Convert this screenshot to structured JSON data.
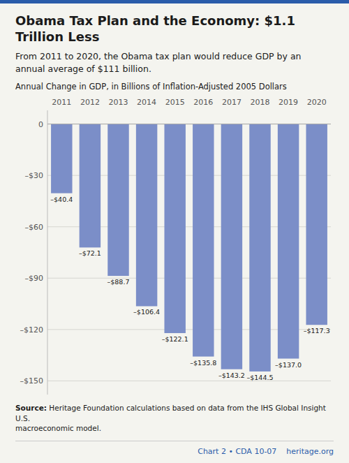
{
  "chart_data": {
    "type": "bar",
    "title": "Obama Tax Plan and the Economy: $1.1 Trillion Less",
    "subtitle": "From 2011 to 2020, the Obama tax plan would reduce GDP by an\nannual average of $111 billion.",
    "y_label": "Annual Change in GDP, in Billions of Inflation-Adjusted 2005 Dollars",
    "source_label": "Source:",
    "source": "Heritage Foundation calculations based on data from the IHS Global Insight U.S.\nmacroeconomic model.",
    "footer": "Chart 2 • CDA 10-07    heritage.org",
    "categories": [
      "2011",
      "2012",
      "2013",
      "2014",
      "2015",
      "2016",
      "2017",
      "2018",
      "2019",
      "2020"
    ],
    "values": [
      -40.4,
      -72.1,
      -88.7,
      -106.4,
      -122.1,
      -135.8,
      -143.2,
      -144.5,
      -137.0,
      -117.3
    ],
    "value_labels": [
      "–$40.4",
      "–$72.1",
      "–$88.7",
      "–$106.4",
      "–$122.1",
      "–$135.8",
      "–$143.2",
      "–$144.5",
      "–$137.0",
      "–$117.3"
    ],
    "color": "#7b8ec8",
    "ylim": [
      -158,
      8
    ],
    "yticks": [
      0,
      {
        "value": -30,
        "label": "–$30"
      },
      {
        "value": -60,
        "label": "–$60"
      },
      {
        "value": -90,
        "label": "–$90"
      },
      {
        "value": -120,
        "label": "–$120"
      },
      {
        "value": -150,
        "label": "–$150"
      }
    ],
    "grid": true,
    "data_labels": true
  }
}
